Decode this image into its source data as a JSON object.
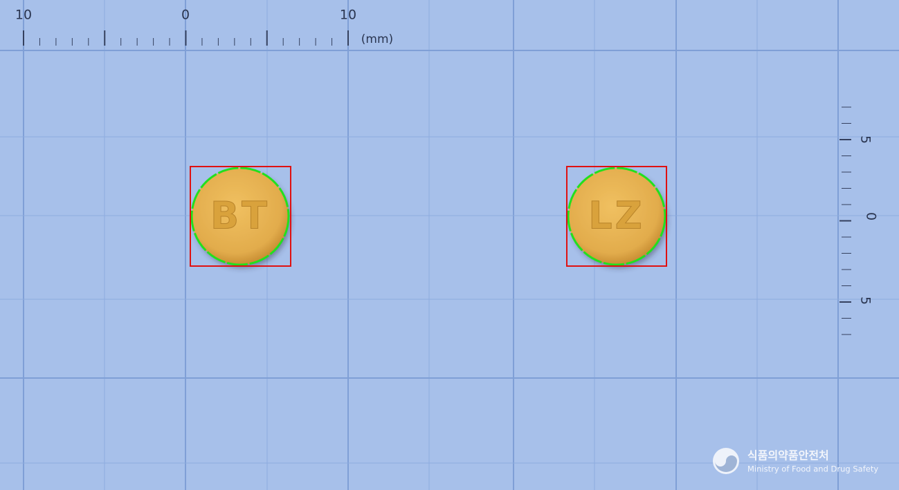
{
  "top_ruler": {
    "labels": [
      "10",
      "0",
      "10"
    ],
    "unit": "(mm)"
  },
  "side_ruler": {
    "labels": [
      "5",
      "0",
      "5"
    ]
  },
  "pills": [
    {
      "imprint": "BT"
    },
    {
      "imprint": "LZ"
    }
  ],
  "logo": {
    "korean": "식품의약품안전처",
    "english": "Ministry of Food and Drug Safety"
  }
}
